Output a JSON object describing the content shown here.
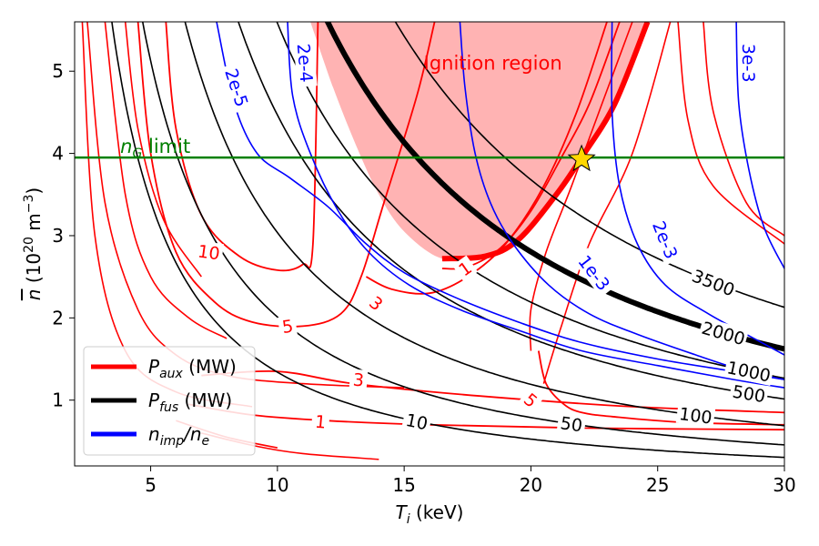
{
  "chart_data": {
    "type": "contour",
    "xlabel": "T_i (keV)",
    "ylabel": "n̄ (10^20 m^-3)",
    "xlim": [
      2,
      30
    ],
    "ylim": [
      0.2,
      5.6
    ],
    "xticks": [
      5,
      10,
      15,
      20,
      25,
      30
    ],
    "yticks": [
      1,
      2,
      3,
      4,
      5
    ],
    "grid": false,
    "legend_position": "lower-left",
    "legend": [
      {
        "label": "P_aux (MW)",
        "color": "#ff0000"
      },
      {
        "label": "P_fus (MW)",
        "color": "#000000"
      },
      {
        "label": "n_imp/n_e",
        "color": "#0000ff"
      }
    ],
    "colors": {
      "paux": "#ff0000",
      "pfus": "#000000",
      "nimp": "#0000ff",
      "ngl": "#008000",
      "region": "#ffb3b3",
      "star": "#ffd700"
    },
    "ng_limit": {
      "label": "n_G limit",
      "y": 3.95
    },
    "ignition_region": {
      "label": "Ignition region",
      "boundary": [
        [
          11.3,
          5.6
        ],
        [
          12.2,
          4.8
        ],
        [
          13.1,
          4.1
        ],
        [
          14,
          3.5
        ],
        [
          15,
          3.05
        ],
        [
          16.5,
          2.72
        ],
        [
          18.2,
          2.75
        ],
        [
          19.5,
          2.95
        ],
        [
          21,
          3.5
        ],
        [
          22,
          3.95
        ],
        [
          23.3,
          4.6
        ],
        [
          24.6,
          5.6
        ]
      ]
    },
    "operating_point": {
      "x": 22,
      "y": 3.93
    },
    "pfus_contours": [
      {
        "label": "10",
        "k": 30
      },
      {
        "label": "50",
        "k": 45
      },
      {
        "label": "100",
        "k": 68
      },
      {
        "label": "500",
        "k": 100
      },
      {
        "label": "1000",
        "k": 125
      },
      {
        "label": "2000",
        "k": 160,
        "bold": true
      },
      {
        "label": "3500",
        "k": 210
      }
    ],
    "paux_contours": [
      {
        "label": "10",
        "points": [
          [
            5.6,
            5.6
          ],
          [
            6,
            4.3
          ],
          [
            7,
            3.25
          ],
          [
            8.5,
            2.75
          ],
          [
            10,
            2.58
          ],
          [
            11,
            2.65
          ],
          [
            11.4,
            2.9
          ],
          [
            11.6,
            5.6
          ]
        ]
      },
      {
        "label": "5",
        "points": [
          [
            4.5,
            5.6
          ],
          [
            5,
            4
          ],
          [
            6,
            2.8
          ],
          [
            7.5,
            2.2
          ],
          [
            9,
            1.95
          ],
          [
            11,
            1.9
          ],
          [
            12.5,
            2.05
          ],
          [
            13.3,
            2.5
          ],
          [
            14.2,
            3.4
          ],
          [
            15.5,
            4.7
          ],
          [
            16.2,
            5.6
          ]
        ]
      },
      {
        "label": "3",
        "points": [
          [
            7,
            1.3
          ],
          [
            10,
            1.35
          ],
          [
            13,
            1.2
          ],
          [
            18,
            1.05
          ],
          [
            24,
            0.92
          ],
          [
            30,
            0.85
          ]
        ]
      },
      {
        "label": "3",
        "points": [
          [
            13.5,
            2.5
          ],
          [
            14.5,
            2.35
          ],
          [
            16,
            2.3
          ],
          [
            17.5,
            2.5
          ],
          [
            19,
            2.9
          ],
          [
            20.5,
            3.6
          ],
          [
            21.8,
            4.5
          ],
          [
            23,
            5.6
          ]
        ]
      },
      {
        "label": "1",
        "points": [
          [
            6.5,
            0.95
          ],
          [
            9,
            0.82
          ],
          [
            12,
            0.75
          ],
          [
            16,
            0.7
          ],
          [
            22,
            0.66
          ],
          [
            30,
            0.64
          ]
        ]
      },
      {
        "label": "1",
        "points": [
          [
            16.5,
            2.6
          ],
          [
            17.5,
            2.62
          ],
          [
            18.8,
            2.85
          ],
          [
            20,
            3.3
          ],
          [
            21.2,
            3.95
          ],
          [
            22.3,
            4.6
          ],
          [
            23.5,
            5.6
          ]
        ]
      },
      {
        "label": "5",
        "points": [
          [
            20.3,
            1.6
          ],
          [
            20.6,
            1.2
          ],
          [
            21.3,
            0.95
          ],
          [
            22,
            0.85
          ],
          [
            23.2,
            0.8
          ],
          [
            26,
            0.73
          ],
          [
            30,
            0.7
          ]
        ]
      }
    ],
    "paux_unlabeled": [
      [
        [
          2.5,
          5.6
        ],
        [
          3.2,
          3.4
        ],
        [
          4.5,
          2.1
        ],
        [
          6,
          1.55
        ],
        [
          8,
          1.3
        ],
        [
          11,
          1.2
        ],
        [
          15,
          1.15
        ]
      ],
      [
        [
          3.2,
          5.6
        ],
        [
          4,
          3.5
        ],
        [
          5,
          2.5
        ],
        [
          6.5,
          2
        ],
        [
          8,
          1.75
        ]
      ],
      [
        [
          4,
          5.6
        ],
        [
          4.5,
          4.3
        ],
        [
          5.5,
          3.2
        ],
        [
          7,
          2.5
        ]
      ],
      [
        [
          2.3,
          5.6
        ],
        [
          2.8,
          3
        ],
        [
          4,
          1.6
        ],
        [
          6,
          1.1
        ],
        [
          9,
          0.92
        ]
      ],
      [
        [
          20,
          1.6
        ],
        [
          20,
          2.1
        ],
        [
          20.6,
          2.8
        ],
        [
          21.6,
          3.6
        ],
        [
          22.8,
          4.6
        ],
        [
          24,
          5.6
        ]
      ],
      [
        [
          20.5,
          1.2
        ],
        [
          21.2,
          1.9
        ],
        [
          22.3,
          2.9
        ],
        [
          24,
          4
        ],
        [
          25.5,
          5.6
        ]
      ],
      [
        [
          26.8,
          5.6
        ],
        [
          27.2,
          4.5
        ],
        [
          28.5,
          3.4
        ],
        [
          30,
          3
        ]
      ],
      [
        [
          25.8,
          5.6
        ],
        [
          26.2,
          4.4
        ],
        [
          27.2,
          3.6
        ],
        [
          30,
          2.9
        ]
      ],
      [
        [
          7,
          0.6
        ],
        [
          9,
          0.45
        ],
        [
          11,
          0.35
        ],
        [
          14,
          0.28
        ]
      ],
      [
        [
          6,
          0.75
        ],
        [
          8,
          0.55
        ],
        [
          10,
          0.42
        ]
      ]
    ],
    "nimp_contours": [
      {
        "label": "2e-5",
        "points": [
          [
            7.6,
            5.6
          ],
          [
            8.3,
            4.6
          ],
          [
            9.2,
            4
          ],
          [
            10.5,
            3.7
          ],
          [
            12,
            3.35
          ],
          [
            13.5,
            2.9
          ],
          [
            15,
            2.55
          ],
          [
            17,
            2.25
          ],
          [
            19.5,
            1.95
          ],
          [
            22,
            1.7
          ],
          [
            25,
            1.5
          ],
          [
            28,
            1.35
          ],
          [
            30,
            1.25
          ]
        ]
      },
      {
        "label": "2e-4",
        "points": [
          [
            10.4,
            5.6
          ],
          [
            10.6,
            4.7
          ],
          [
            11.3,
            4
          ],
          [
            12.4,
            3.3
          ],
          [
            13.6,
            2.8
          ],
          [
            15.2,
            2.4
          ],
          [
            17.2,
            2.1
          ],
          [
            19.5,
            1.85
          ],
          [
            22,
            1.6
          ],
          [
            25,
            1.42
          ],
          [
            28,
            1.25
          ],
          [
            30,
            1.15
          ]
        ]
      },
      {
        "label": "1e-3",
        "points": [
          [
            17.2,
            5.6
          ],
          [
            17.4,
            4.8
          ],
          [
            17.8,
            4
          ],
          [
            18.4,
            3.4
          ],
          [
            19.3,
            2.9
          ],
          [
            20.7,
            2.4
          ],
          [
            22.3,
            2.05
          ],
          [
            24.2,
            1.8
          ],
          [
            26.5,
            1.55
          ],
          [
            28.5,
            1.35
          ],
          [
            30,
            1.25
          ]
        ]
      },
      {
        "label": "2e-3",
        "points": [
          [
            23.2,
            5.6
          ],
          [
            23.2,
            4.5
          ],
          [
            23.5,
            3.6
          ],
          [
            24.2,
            2.9
          ],
          [
            25.3,
            2.4
          ],
          [
            27,
            2.05
          ],
          [
            28.5,
            1.8
          ],
          [
            30,
            1.55
          ]
        ]
      },
      {
        "label": "3e-3",
        "points": [
          [
            28.1,
            5.6
          ],
          [
            28.2,
            4.6
          ],
          [
            28.6,
            3.8
          ],
          [
            29.2,
            3.1
          ],
          [
            30,
            2.6
          ]
        ]
      }
    ]
  }
}
